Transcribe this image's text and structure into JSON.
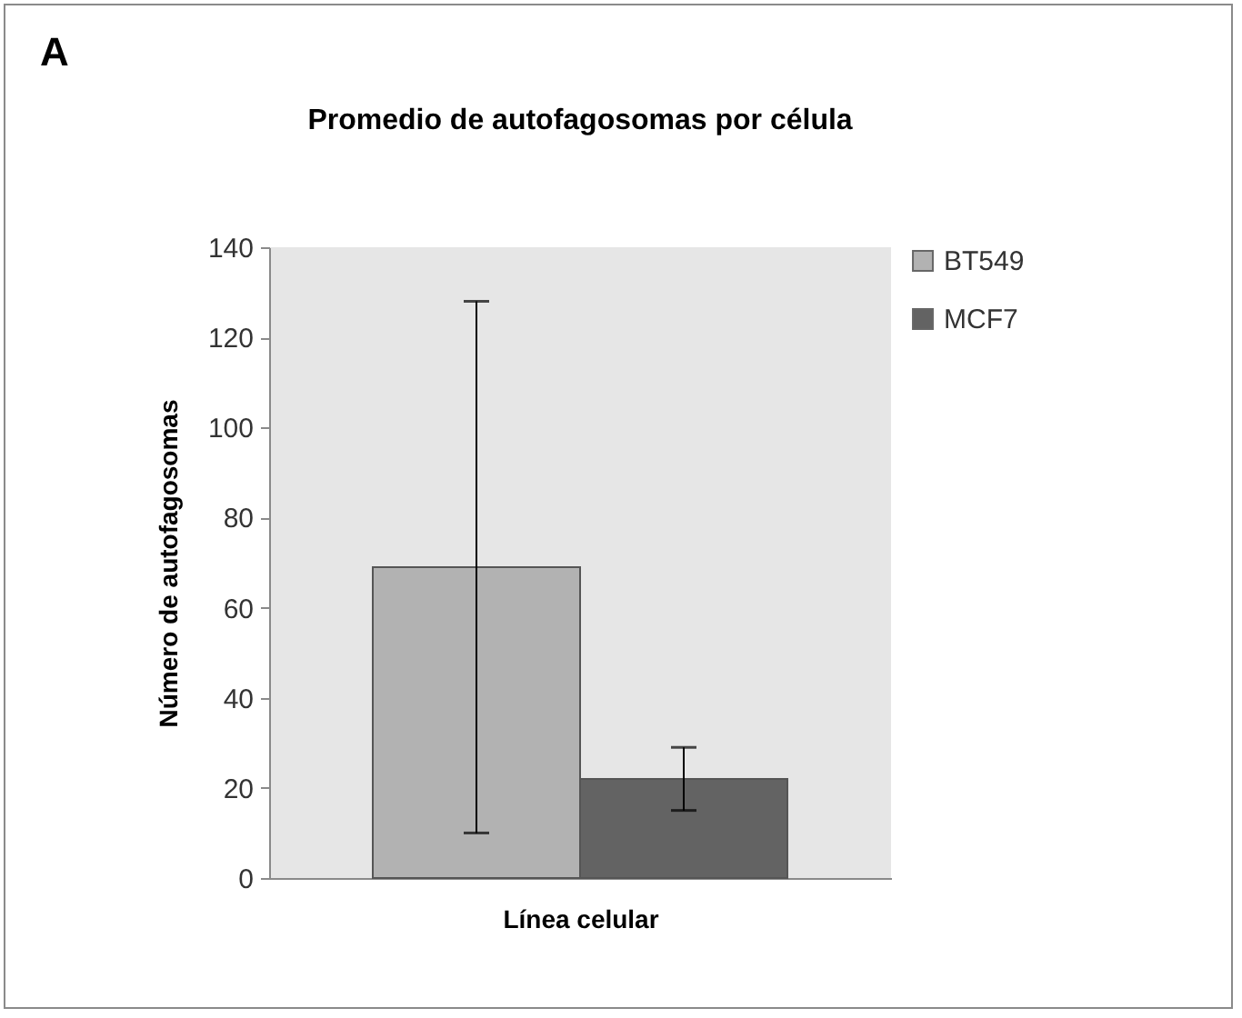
{
  "chart_data": {
    "type": "bar",
    "title": "Promedio de autofagosomas por célula",
    "xlabel": "Línea celular",
    "ylabel": "Número de autofagosomas",
    "annotations": [
      "A"
    ],
    "categories": [
      null
    ],
    "series": [
      {
        "name": "BT549",
        "color": "#b2b2b2",
        "values": [
          69
        ],
        "errors": [
          [
            10,
            128
          ]
        ]
      },
      {
        "name": "MCF7",
        "color": "#636363",
        "values": [
          22
        ],
        "errors": [
          [
            15,
            29
          ]
        ]
      }
    ],
    "ylim": [
      0,
      140
    ],
    "yticks": [
      0,
      20,
      40,
      60,
      80,
      100,
      120,
      140
    ],
    "grid": false,
    "legend": "right"
  }
}
